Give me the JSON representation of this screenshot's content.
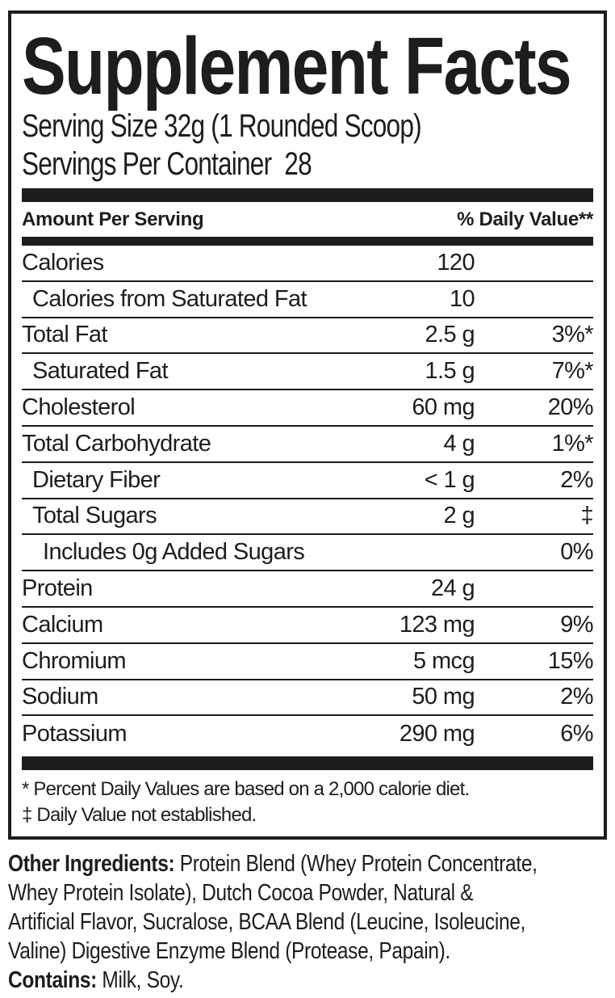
{
  "panel": {
    "title": "Supplement Facts",
    "serving_size_line": "Serving Size 32g (1 Rounded Scoop)",
    "servings_line": "Servings Per Container  28",
    "header": {
      "left": "Amount Per Serving",
      "right": "% Daily Value**"
    },
    "rows": [
      {
        "name": "Calories",
        "amount": "120",
        "dv": "",
        "indent": 0
      },
      {
        "name": "Calories from Saturated Fat",
        "amount": "10",
        "dv": "",
        "indent": 1
      },
      {
        "name": "Total Fat",
        "amount": "2.5 g",
        "dv": "3%*",
        "indent": 0
      },
      {
        "name": "Saturated Fat",
        "amount": "1.5 g",
        "dv": "7%*",
        "indent": 1
      },
      {
        "name": "Cholesterol",
        "amount": "60 mg",
        "dv": "20%",
        "indent": 0
      },
      {
        "name": "Total Carbohydrate",
        "amount": "4 g",
        "dv": "1%*",
        "indent": 0
      },
      {
        "name": "Dietary Fiber",
        "amount": "< 1 g",
        "dv": "2%",
        "indent": 1
      },
      {
        "name": "Total Sugars",
        "amount": "2 g",
        "dv": "‡",
        "indent": 1
      },
      {
        "name": "Includes 0g Added Sugars",
        "amount": "",
        "dv": "0%",
        "indent": 2
      },
      {
        "name": "Protein",
        "amount": "24 g",
        "dv": "",
        "indent": 0
      },
      {
        "name": "Calcium",
        "amount": "123 mg",
        "dv": "9%",
        "indent": 0
      },
      {
        "name": "Chromium",
        "amount": "5 mcg",
        "dv": "15%",
        "indent": 0
      },
      {
        "name": "Sodium",
        "amount": "50 mg",
        "dv": "2%",
        "indent": 0
      },
      {
        "name": "Potassium",
        "amount": "290 mg",
        "dv": "6%",
        "indent": 0
      }
    ],
    "footnotes": [
      "* Percent Daily Values are based on a 2,000 calorie diet.",
      "‡ Daily Value not established."
    ]
  },
  "below": {
    "other_ingredients": {
      "label": "Other Ingredients:",
      "line1_rest": " Protein Blend (Whey Protein Concentrate,",
      "line2": "Whey Protein Isolate), Dutch Cocoa Powder, Natural &",
      "line3": "Artificial Flavor, Sucralose, BCAA Blend (Leucine, Isoleucine,",
      "line4": "Valine) Digestive Enzyme Blend (Protease, Papain)."
    },
    "contains": {
      "label": "Contains:",
      "text": " Milk, Soy."
    }
  },
  "colors": {
    "ink": "#1d1d1b",
    "background": "#ffffff"
  }
}
